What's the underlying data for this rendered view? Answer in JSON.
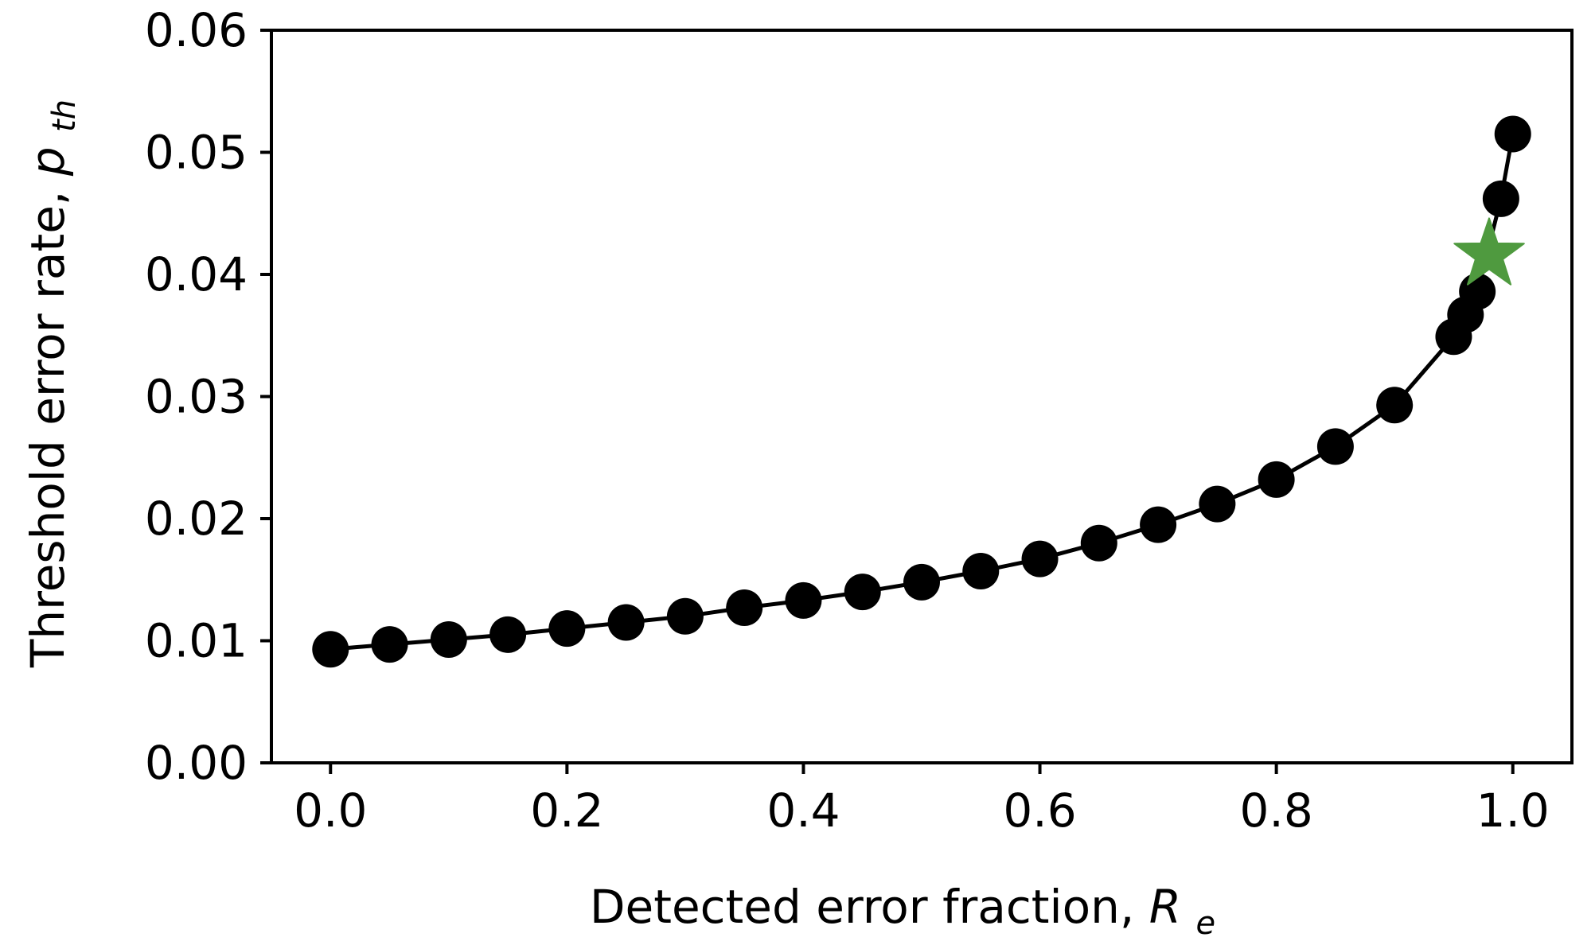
{
  "chart_data": {
    "type": "line",
    "title": "",
    "xlabel": {
      "text": "Detected error fraction, ",
      "symbol": "R",
      "subscript": "e"
    },
    "ylabel": {
      "text": "Threshold error rate, ",
      "symbol": "p",
      "subscript": "th"
    },
    "xlim": [
      -0.05,
      1.05
    ],
    "ylim": [
      0.0,
      0.06
    ],
    "xticks": [
      0.0,
      0.2,
      0.4,
      0.6,
      0.8,
      1.0
    ],
    "xtick_labels": [
      "0.0",
      "0.2",
      "0.4",
      "0.6",
      "0.8",
      "1.0"
    ],
    "yticks": [
      0.0,
      0.01,
      0.02,
      0.03,
      0.04,
      0.05,
      0.06
    ],
    "ytick_labels": [
      "0.00",
      "0.01",
      "0.02",
      "0.03",
      "0.04",
      "0.05",
      "0.06"
    ],
    "grid": false,
    "series": [
      {
        "marker": "circle",
        "color": "#000000",
        "x": [
          0.0,
          0.05,
          0.1,
          0.15,
          0.2,
          0.25,
          0.3,
          0.35,
          0.4,
          0.45,
          0.5,
          0.55,
          0.6,
          0.65,
          0.7,
          0.75,
          0.8,
          0.85,
          0.9,
          0.95,
          0.96,
          0.97,
          0.99,
          1.0
        ],
        "y": [
          0.0093,
          0.0097,
          0.0101,
          0.0105,
          0.011,
          0.0115,
          0.012,
          0.0127,
          0.0133,
          0.014,
          0.0148,
          0.0157,
          0.0167,
          0.018,
          0.0195,
          0.0212,
          0.0232,
          0.0259,
          0.0293,
          0.0349,
          0.0367,
          0.0386,
          0.0462,
          0.0515
        ]
      }
    ],
    "highlight": {
      "marker": "star",
      "color": "#4f9a3f",
      "x": 0.98,
      "y": 0.0416
    }
  }
}
